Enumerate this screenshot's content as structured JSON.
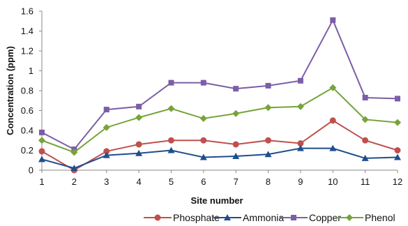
{
  "chart_data": {
    "type": "line",
    "title": "",
    "xlabel": "Site number",
    "ylabel": "Concentration (ppm)",
    "x": [
      1,
      2,
      3,
      4,
      5,
      6,
      7,
      8,
      9,
      10,
      11,
      12
    ],
    "xlim": [
      1,
      12
    ],
    "ylim": [
      0,
      1.6
    ],
    "yticks": [
      0,
      0.2,
      0.4,
      0.6,
      0.8,
      1,
      1.2,
      1.4,
      1.6
    ],
    "grid": false,
    "legend_position": "bottom",
    "series": [
      {
        "name": "Phosphate",
        "color": "#c0504d",
        "marker": "circle",
        "values": [
          0.19,
          0.0,
          0.19,
          0.26,
          0.3,
          0.3,
          0.26,
          0.3,
          0.27,
          0.5,
          0.3,
          0.2
        ]
      },
      {
        "name": "Ammonia",
        "color": "#1f4e8c",
        "marker": "triangle",
        "values": [
          0.11,
          0.02,
          0.15,
          0.17,
          0.2,
          0.13,
          0.14,
          0.16,
          0.22,
          0.22,
          0.12,
          0.13
        ]
      },
      {
        "name": "Copper",
        "color": "#7b5ea7",
        "marker": "square",
        "values": [
          0.38,
          0.21,
          0.61,
          0.64,
          0.88,
          0.88,
          0.82,
          0.85,
          0.9,
          1.51,
          0.73,
          0.72
        ]
      },
      {
        "name": "Phenol",
        "color": "#77a33a",
        "marker": "diamond",
        "values": [
          0.3,
          0.18,
          0.43,
          0.53,
          0.62,
          0.52,
          0.57,
          0.63,
          0.64,
          0.83,
          0.51,
          0.48
        ]
      }
    ]
  }
}
